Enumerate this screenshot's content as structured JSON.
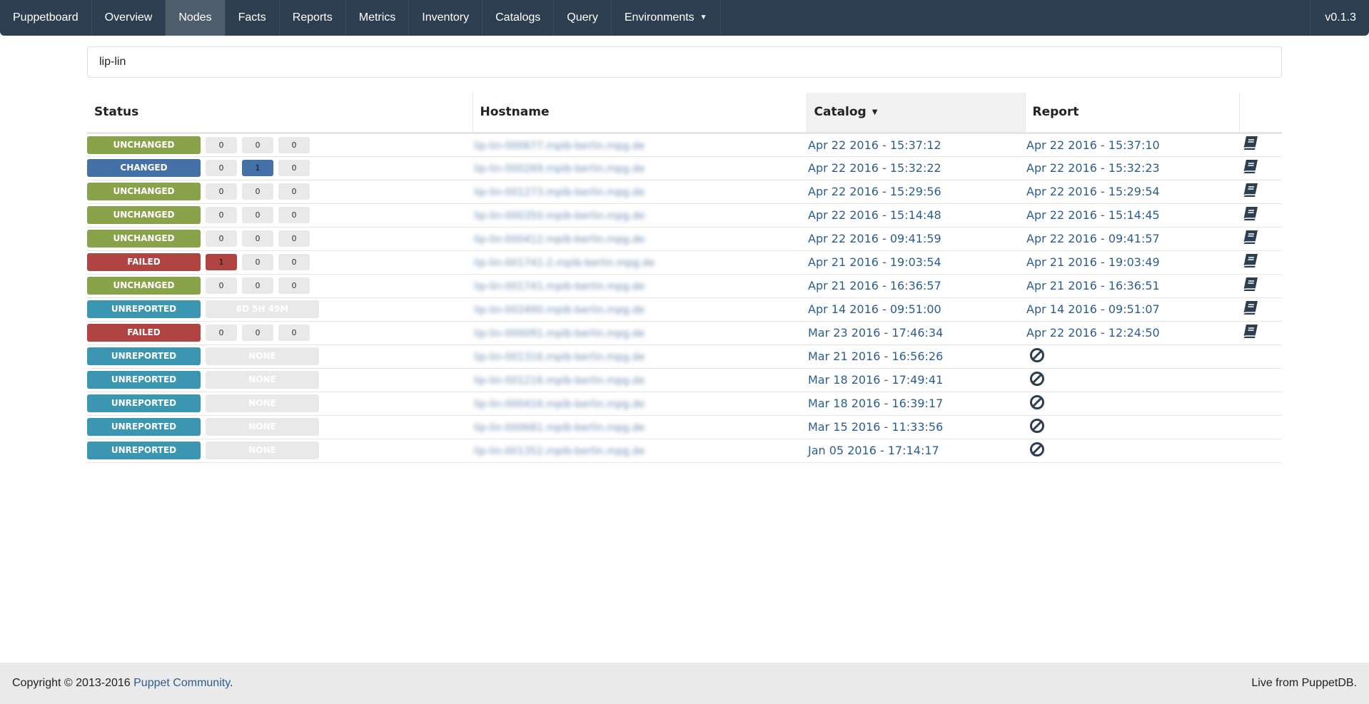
{
  "nav": {
    "brand": "Puppetboard",
    "items": [
      "Overview",
      "Nodes",
      "Facts",
      "Reports",
      "Metrics",
      "Inventory",
      "Catalogs",
      "Query",
      "Environments"
    ],
    "active": "Nodes",
    "version": "v0.1.3"
  },
  "search": {
    "value": "lip-lin"
  },
  "table": {
    "headers": {
      "status": "Status",
      "hostname": "Hostname",
      "catalog": "Catalog",
      "report": "Report"
    },
    "sorted_by": "Catalog",
    "rows": [
      {
        "status": "UNCHANGED",
        "counts": [
          "0",
          "0",
          "0"
        ],
        "host": "lip-lin-000677.mpib-berlin.mpg.de",
        "catalog": "Apr 22 2016 - 15:37:12",
        "report": "Apr 22 2016 - 15:37:10"
      },
      {
        "status": "CHANGED",
        "counts": [
          "0",
          "1",
          "0"
        ],
        "host": "lip-lin-000269.mpib-berlin.mpg.de",
        "catalog": "Apr 22 2016 - 15:32:22",
        "report": "Apr 22 2016 - 15:32:23"
      },
      {
        "status": "UNCHANGED",
        "counts": [
          "0",
          "0",
          "0"
        ],
        "host": "lip-lin-001273.mpib-berlin.mpg.de",
        "catalog": "Apr 22 2016 - 15:29:56",
        "report": "Apr 22 2016 - 15:29:54"
      },
      {
        "status": "UNCHANGED",
        "counts": [
          "0",
          "0",
          "0"
        ],
        "host": "lip-lin-000350.mpib-berlin.mpg.de",
        "catalog": "Apr 22 2016 - 15:14:48",
        "report": "Apr 22 2016 - 15:14:45"
      },
      {
        "status": "UNCHANGED",
        "counts": [
          "0",
          "0",
          "0"
        ],
        "host": "lip-lin-000412.mpib-berlin.mpg.de",
        "catalog": "Apr 22 2016 - 09:41:59",
        "report": "Apr 22 2016 - 09:41:57"
      },
      {
        "status": "FAILED",
        "counts": [
          "1",
          "0",
          "0"
        ],
        "host": "lip-lin-001741-2.mpib-berlin.mpg.de",
        "catalog": "Apr 21 2016 - 19:03:54",
        "report": "Apr 21 2016 - 19:03:49"
      },
      {
        "status": "UNCHANGED",
        "counts": [
          "0",
          "0",
          "0"
        ],
        "host": "lip-lin-001741.mpib-berlin.mpg.de",
        "catalog": "Apr 21 2016 - 16:36:57",
        "report": "Apr 21 2016 - 16:36:51"
      },
      {
        "status": "UNREPORTED",
        "since": "8D 5H 49M",
        "host": "lip-lin-002490.mpib-berlin.mpg.de",
        "catalog": "Apr 14 2016 - 09:51:00",
        "report": "Apr 14 2016 - 09:51:07"
      },
      {
        "status": "FAILED",
        "counts": [
          "0",
          "0",
          "0"
        ],
        "host": "lip-lin-000091.mpib-berlin.mpg.de",
        "catalog": "Mar 23 2016 - 17:46:34",
        "report": "Apr 22 2016 - 12:24:50"
      },
      {
        "status": "UNREPORTED",
        "since": "NONE",
        "host": "lip-lin-001316.mpib-berlin.mpg.de",
        "catalog": "Mar 21 2016 - 16:56:26",
        "report": null
      },
      {
        "status": "UNREPORTED",
        "since": "NONE",
        "host": "lip-lin-001216.mpib-berlin.mpg.de",
        "catalog": "Mar 18 2016 - 17:49:41",
        "report": null
      },
      {
        "status": "UNREPORTED",
        "since": "NONE",
        "host": "lip-lin-000416.mpib-berlin.mpg.de",
        "catalog": "Mar 18 2016 - 16:39:17",
        "report": null
      },
      {
        "status": "UNREPORTED",
        "since": "NONE",
        "host": "lip-lin-000681.mpib-berlin.mpg.de",
        "catalog": "Mar 15 2016 - 11:33:56",
        "report": null
      },
      {
        "status": "UNREPORTED",
        "since": "NONE",
        "host": "lip-lin-001352.mpib-berlin.mpg.de",
        "catalog": "Jan 05 2016 - 17:14:17",
        "report": null
      }
    ]
  },
  "colors": {
    "UNCHANGED": "#88a34a",
    "CHANGED": "#4371a8",
    "FAILED": "#b04442",
    "UNREPORTED": "#3b97b1",
    "nav": "#2d3e50",
    "link": "#2c5d8f",
    "icon": "#2d3e50"
  },
  "icons": {
    "report": "book-icon",
    "no_report": "ban-icon"
  },
  "footer": {
    "copyright": "Copyright © 2013-2016 ",
    "link": "Puppet Community",
    "period": ".",
    "right": "Live from PuppetDB."
  }
}
